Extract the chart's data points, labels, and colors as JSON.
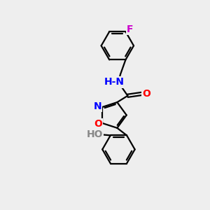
{
  "bg_color": "#eeeeee",
  "bond_color": "#000000",
  "bond_width": 1.6,
  "atom_colors": {
    "F": "#cc00cc",
    "N": "#0000ff",
    "O": "#ff0000",
    "H_gray": "#888888"
  },
  "font_size": 10,
  "fig_width": 3.0,
  "fig_height": 3.0,
  "dpi": 100
}
